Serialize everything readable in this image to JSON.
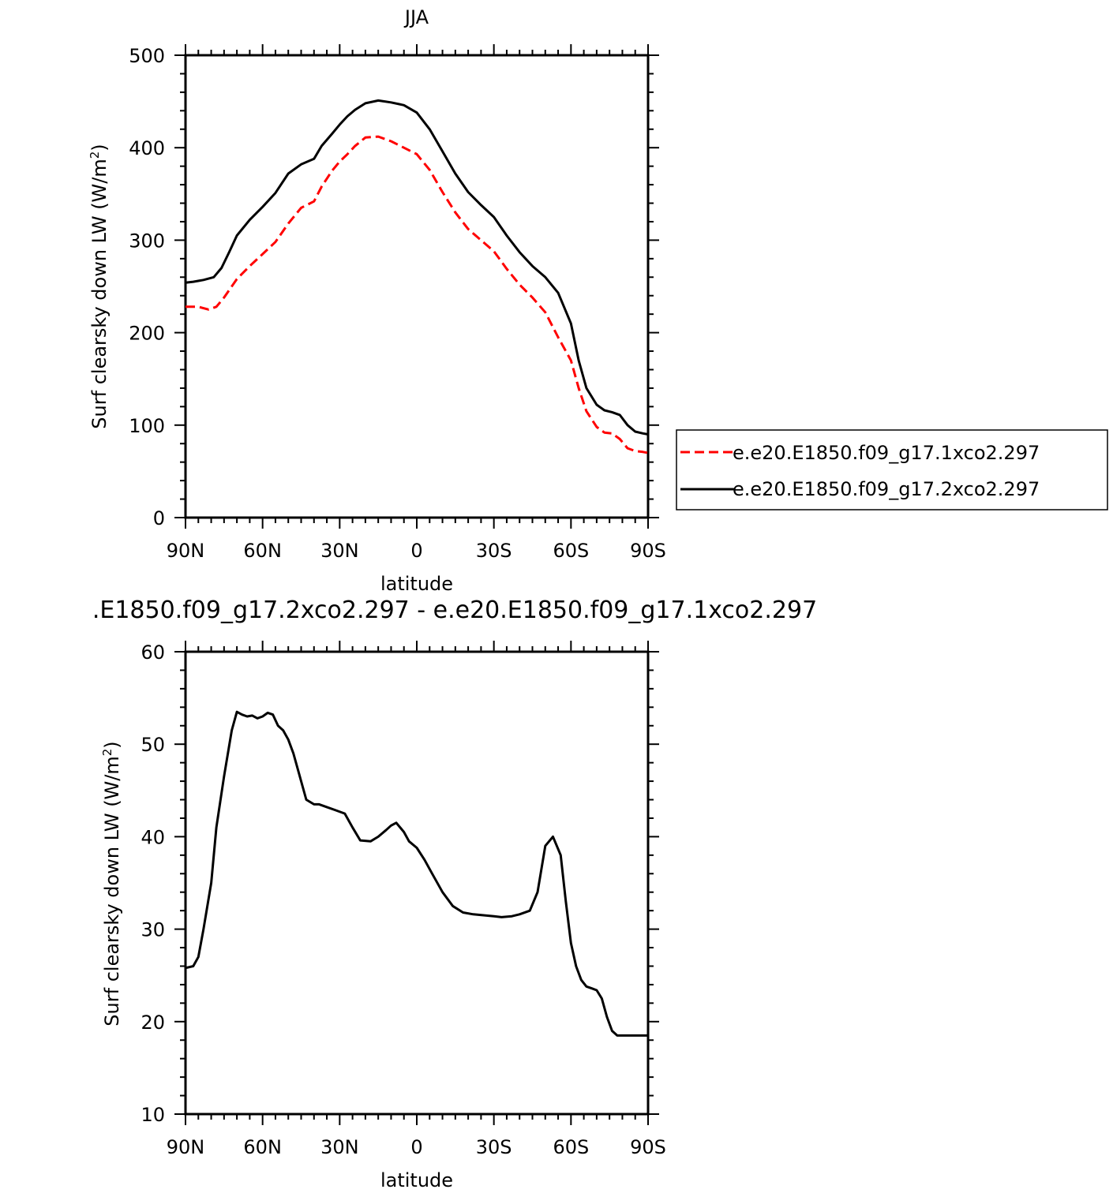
{
  "chart_data": [
    {
      "type": "line",
      "title": "JJA",
      "xlabel": "latitude",
      "ylabel": "Surf clearsky down LW (W/m",
      "ylabel_sup": "2",
      "ylabel_close": ")",
      "xlim": [
        90,
        -90
      ],
      "ylim": [
        0,
        500
      ],
      "x_ticks": [
        {
          "value": 90,
          "label": "90N"
        },
        {
          "value": 60,
          "label": "60N"
        },
        {
          "value": 30,
          "label": "30N"
        },
        {
          "value": 0,
          "label": "0"
        },
        {
          "value": -30,
          "label": "30S"
        },
        {
          "value": -60,
          "label": "60S"
        },
        {
          "value": -90,
          "label": "90S"
        }
      ],
      "y_ticks": [
        {
          "value": 0,
          "label": "0"
        },
        {
          "value": 100,
          "label": "100"
        },
        {
          "value": 200,
          "label": "200"
        },
        {
          "value": 300,
          "label": "300"
        },
        {
          "value": 400,
          "label": "400"
        },
        {
          "value": 500,
          "label": "500"
        }
      ],
      "legend_position": "right",
      "series": [
        {
          "name": "e.e20.E1850.f09_g17.1xco2.297",
          "color": "#ff0000",
          "style": "dashed",
          "x": [
            90,
            85,
            81,
            78,
            75,
            70,
            65,
            60,
            55,
            50,
            45,
            40,
            37,
            33,
            30,
            27,
            24,
            20,
            15,
            10,
            5,
            0,
            -5,
            -10,
            -15,
            -20,
            -25,
            -30,
            -35,
            -40,
            -45,
            -50,
            -55,
            -60,
            -63,
            -66,
            -70,
            -73,
            -76,
            -79,
            -82,
            -85,
            -88,
            -90
          ],
          "y": [
            228,
            228,
            225,
            228,
            238,
            258,
            272,
            285,
            298,
            318,
            335,
            342,
            358,
            375,
            385,
            393,
            402,
            411,
            412,
            407,
            400,
            393,
            376,
            352,
            330,
            312,
            300,
            288,
            269,
            252,
            238,
            222,
            195,
            170,
            140,
            115,
            98,
            92,
            91,
            85,
            75,
            72,
            71,
            70
          ]
        },
        {
          "name": "e.e20.E1850.f09_g17.2xco2.297",
          "color": "#000000",
          "style": "solid",
          "x": [
            90,
            87,
            83,
            79,
            76,
            73,
            70,
            65,
            60,
            55,
            50,
            45,
            40,
            37,
            33,
            30,
            27,
            24,
            20,
            15,
            10,
            5,
            0,
            -5,
            -10,
            -15,
            -20,
            -25,
            -30,
            -35,
            -40,
            -45,
            -50,
            -55,
            -60,
            -63,
            -66,
            -70,
            -73,
            -76,
            -79,
            -82,
            -85,
            -88,
            -90
          ],
          "y": [
            254,
            255,
            257,
            260,
            270,
            287,
            305,
            322,
            336,
            351,
            372,
            382,
            388,
            402,
            415,
            425,
            434,
            441,
            448,
            451,
            449,
            446,
            438,
            420,
            396,
            372,
            352,
            338,
            325,
            305,
            287,
            272,
            260,
            243,
            210,
            170,
            140,
            122,
            116,
            114,
            111,
            100,
            93,
            91,
            90
          ]
        }
      ]
    },
    {
      "type": "line",
      "title": ".E1850.f09_g17.2xco2.297 - e.e20.E1850.f09_g17.1xco2.297",
      "xlabel": "latitude",
      "ylabel": "Surf clearsky down LW (W/m",
      "ylabel_sup": "2",
      "ylabel_close": ")",
      "xlim": [
        90,
        -90
      ],
      "ylim": [
        10,
        60
      ],
      "x_ticks": [
        {
          "value": 90,
          "label": "90N"
        },
        {
          "value": 60,
          "label": "60N"
        },
        {
          "value": 30,
          "label": "30N"
        },
        {
          "value": 0,
          "label": "0"
        },
        {
          "value": -30,
          "label": "30S"
        },
        {
          "value": -60,
          "label": "60S"
        },
        {
          "value": -90,
          "label": "90S"
        }
      ],
      "y_ticks": [
        {
          "value": 10,
          "label": "10"
        },
        {
          "value": 20,
          "label": "20"
        },
        {
          "value": 30,
          "label": "30"
        },
        {
          "value": 40,
          "label": "40"
        },
        {
          "value": 50,
          "label": "50"
        },
        {
          "value": 60,
          "label": "60"
        }
      ],
      "series": [
        {
          "color": "#000000",
          "style": "solid",
          "x": [
            90,
            87,
            85,
            83,
            80,
            78,
            75,
            72,
            70,
            68,
            66,
            64,
            62,
            60,
            58,
            56,
            54,
            52,
            50,
            48,
            45,
            43,
            40,
            38,
            35,
            32,
            28,
            25,
            22,
            18,
            15,
            12,
            10,
            8,
            5,
            3,
            0,
            -3,
            -6,
            -10,
            -14,
            -18,
            -22,
            -26,
            -30,
            -33,
            -37,
            -40,
            -44,
            -47,
            -50,
            -53,
            -56,
            -58,
            -60,
            -62,
            -64,
            -66,
            -68,
            -70,
            -72,
            -74,
            -76,
            -78,
            -80,
            -82,
            -84,
            -86,
            -88,
            -90
          ],
          "y": [
            25.8,
            26.0,
            27.0,
            30.0,
            35.0,
            41.0,
            46.5,
            51.5,
            53.5,
            53.2,
            53.0,
            53.1,
            52.8,
            53.0,
            53.4,
            53.2,
            52.0,
            51.5,
            50.5,
            49.0,
            46.0,
            44.0,
            43.5,
            43.5,
            43.2,
            42.9,
            42.5,
            41.0,
            39.6,
            39.5,
            40.0,
            40.7,
            41.2,
            41.5,
            40.5,
            39.5,
            38.8,
            37.5,
            36.0,
            34.0,
            32.5,
            31.8,
            31.6,
            31.5,
            31.4,
            31.3,
            31.4,
            31.6,
            32.0,
            34.0,
            39.0,
            40.0,
            38.0,
            33.0,
            28.5,
            26.0,
            24.5,
            23.8,
            23.6,
            23.4,
            22.5,
            20.5,
            19.0,
            18.5,
            18.5,
            18.5,
            18.5,
            18.5,
            18.5,
            18.5
          ]
        }
      ]
    }
  ]
}
